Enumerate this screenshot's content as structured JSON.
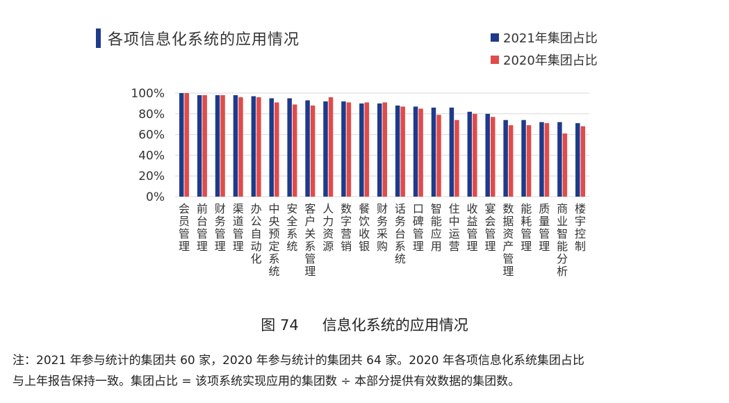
{
  "chart_data": {
    "type": "bar",
    "title": "各项信息化系统的应用情况",
    "categories": [
      "会员管理",
      "前台管理",
      "财务管理",
      "渠道管理",
      "办公自动化",
      "中央预定系统",
      "安全系统",
      "客户关系管理",
      "人力资源",
      "数字营销",
      "餐饮收银",
      "财务采购",
      "话务台系统",
      "口碑管理",
      "智能应用",
      "住中运营",
      "收益管理",
      "宴会管理",
      "数据资产管理",
      "能耗管理",
      "质量管理",
      "商业智能分析",
      "楼宇控制"
    ],
    "series": [
      {
        "name": "2021年集团占比",
        "color": "#1f3a8a",
        "values": [
          100,
          98,
          98,
          98,
          97,
          95,
          95,
          93,
          92,
          92,
          90,
          90,
          88,
          87,
          86,
          86,
          82,
          80,
          74,
          74,
          72,
          72,
          71
        ]
      },
      {
        "name": "2020年集团占比",
        "color": "#e04b4b",
        "values": [
          100,
          98,
          98,
          96,
          96,
          91,
          89,
          88,
          96,
          91,
          91,
          91,
          87,
          85,
          79,
          74,
          80,
          77,
          69,
          69,
          71,
          61,
          68
        ]
      }
    ],
    "ylim": [
      0,
      100
    ],
    "yticks": [
      "0%",
      "20%",
      "40%",
      "60%",
      "80%",
      "100%"
    ],
    "xlabel": "",
    "ylabel": ""
  },
  "caption": {
    "figure": "图 74",
    "title": "信息化系统的应用情况"
  },
  "note": {
    "line1": "注：2021 年参与统计的集团共 60 家，2020 年参与统计的集团共 64 家。2020 年各项信息化系统集团占比",
    "line2": "与上年报告保持一致。集团占比 = 该项系统实现应用的集团数 ÷ 本部分提供有效数据的集团数。"
  },
  "colors": {
    "series2021": "#1f3a8a",
    "series2020": "#e04b4b",
    "grid": "#d9d9d9",
    "title_bar": "#1f3a8a"
  }
}
